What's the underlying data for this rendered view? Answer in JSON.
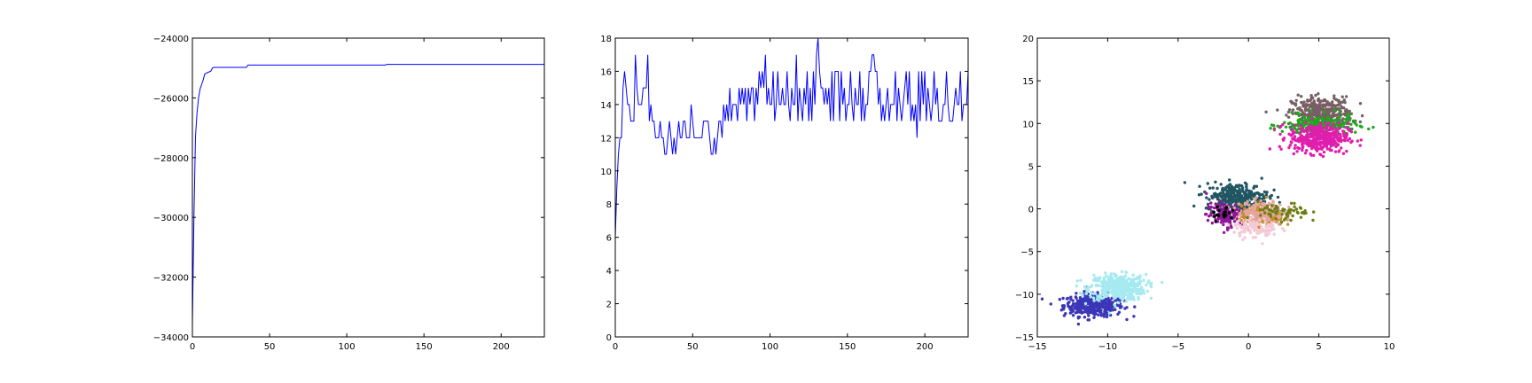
{
  "colors": {
    "line": "#0000ff",
    "axis": "#000000",
    "background": "#ffffff"
  },
  "chart_data": [
    {
      "type": "line",
      "title": "",
      "xlabel": "",
      "ylabel": "",
      "xlim": [
        0,
        228
      ],
      "ylim": [
        -34000,
        -24000
      ],
      "xticks": [
        0,
        50,
        100,
        150,
        200
      ],
      "yticks": [
        -34000,
        -32000,
        -30000,
        -28000,
        -26000,
        -24000
      ],
      "xtick_labels": [
        "0",
        "50",
        "100",
        "150",
        "200"
      ],
      "ytick_labels": [
        "−34000",
        "−32000",
        "−30000",
        "−28000",
        "−26000",
        "−24000"
      ],
      "grid": false,
      "series": [
        {
          "color": "#0000ff",
          "points": [
            [
              0,
              -33600
            ],
            [
              1,
              -30000
            ],
            [
              2,
              -27300
            ],
            [
              3,
              -26500
            ],
            [
              4,
              -26000
            ],
            [
              5,
              -25700
            ],
            [
              6,
              -25550
            ],
            [
              7,
              -25400
            ],
            [
              8,
              -25200
            ],
            [
              10,
              -25150
            ],
            [
              12,
              -25100
            ],
            [
              13,
              -25000
            ],
            [
              14,
              -24980
            ],
            [
              35,
              -24980
            ],
            [
              36,
              -24900
            ],
            [
              125,
              -24900
            ],
            [
              126,
              -24880
            ],
            [
              228,
              -24880
            ]
          ]
        }
      ]
    },
    {
      "type": "line",
      "title": "",
      "xlabel": "",
      "ylabel": "",
      "xlim": [
        0,
        228
      ],
      "ylim": [
        0,
        18
      ],
      "xticks": [
        0,
        50,
        100,
        150,
        200
      ],
      "yticks": [
        0,
        2,
        4,
        6,
        8,
        10,
        12,
        14,
        16,
        18
      ],
      "xtick_labels": [
        "0",
        "50",
        "100",
        "150",
        "200"
      ],
      "ytick_labels": [
        "0",
        "2",
        "4",
        "6",
        "8",
        "10",
        "12",
        "14",
        "16",
        "18"
      ],
      "grid": false,
      "series": [
        {
          "color": "#0000ff",
          "y": [
            6,
            9,
            11,
            12,
            12,
            15,
            16,
            15,
            14,
            14,
            13,
            13,
            13,
            17,
            15,
            14,
            14,
            14,
            15,
            15,
            15,
            17,
            13,
            14,
            13,
            13,
            12,
            12,
            12,
            13,
            12,
            12,
            11,
            11,
            12,
            13,
            12,
            11,
            12,
            11,
            12,
            13,
            12,
            12,
            13,
            13,
            12,
            12,
            12,
            14,
            13,
            12,
            12,
            12,
            12,
            12,
            12,
            13,
            13,
            13,
            13,
            12,
            11,
            11,
            12,
            11,
            12,
            13,
            13,
            12,
            14,
            13,
            14,
            13,
            15,
            13,
            14,
            14,
            14,
            13,
            15,
            14,
            15,
            14,
            15,
            13,
            15,
            14,
            15,
            15,
            13,
            15,
            14,
            16,
            15,
            16,
            15,
            17,
            14,
            15,
            14,
            14,
            16,
            13,
            14,
            16,
            14,
            14,
            15,
            14,
            14,
            16,
            14,
            13,
            15,
            14,
            14,
            17,
            13,
            15,
            14,
            13,
            15,
            14,
            16,
            13,
            15,
            13,
            16,
            14,
            17,
            18,
            16,
            15,
            15,
            14,
            15,
            14,
            15,
            13,
            16,
            13,
            16,
            16,
            16,
            13,
            16,
            14,
            15,
            13,
            14,
            14,
            16,
            14,
            13,
            15,
            14,
            14,
            16,
            13,
            15,
            13,
            14,
            14,
            16,
            16,
            17,
            17,
            16,
            16,
            14,
            15,
            13,
            14,
            13,
            14,
            15,
            13,
            14,
            14,
            14,
            16,
            13,
            15,
            14,
            13,
            14,
            15,
            16,
            14,
            16,
            13,
            14,
            13,
            14,
            12,
            16,
            13,
            16,
            14,
            16,
            13,
            15,
            14,
            13,
            14,
            16,
            14,
            15,
            13,
            13,
            13,
            14,
            14,
            16,
            14,
            13,
            13,
            13,
            14,
            15,
            14,
            14,
            16,
            13,
            14,
            14,
            14,
            16,
            13
          ]
        }
      ]
    },
    {
      "type": "scatter",
      "title": "",
      "xlabel": "",
      "ylabel": "",
      "xlim": [
        -15,
        10
      ],
      "ylim": [
        -15,
        20
      ],
      "xticks": [
        -15,
        -10,
        -5,
        0,
        5,
        10
      ],
      "yticks": [
        -15,
        -10,
        -5,
        0,
        5,
        10,
        15,
        20
      ],
      "xtick_labels": [
        "−15",
        "−10",
        "−5",
        "0",
        "5",
        "10"
      ],
      "ytick_labels": [
        "−15",
        "−10",
        "−5",
        "0",
        "5",
        "10",
        "15",
        "20"
      ],
      "grid": false,
      "clusters": [
        {
          "color": "#3b36b7",
          "center": [
            -11,
            -11.3
          ],
          "spread": [
            1.05,
            0.65
          ],
          "count": 380
        },
        {
          "color": "#a5eaf0",
          "center": [
            -9.3,
            -9.2
          ],
          "spread": [
            1.0,
            0.75
          ],
          "count": 420
        },
        {
          "color": "#775f63",
          "center": [
            5.2,
            11.2
          ],
          "spread": [
            1.05,
            0.95
          ],
          "count": 380
        },
        {
          "color": "#1da91d",
          "center": [
            5.0,
            9.8
          ],
          "spread": [
            1.3,
            0.6
          ],
          "count": 200
        },
        {
          "color": "#e01ead",
          "center": [
            5.0,
            8.3
          ],
          "spread": [
            1.05,
            0.85
          ],
          "count": 380
        },
        {
          "color": "#205562",
          "center": [
            -0.8,
            1.4
          ],
          "spread": [
            1.1,
            0.8
          ],
          "count": 300
        },
        {
          "color": "#8e1996",
          "center": [
            -1.6,
            -0.7
          ],
          "spread": [
            0.7,
            0.7
          ],
          "count": 150
        },
        {
          "color": "#c18d27",
          "center": [
            1.0,
            -0.8
          ],
          "spread": [
            0.75,
            0.6
          ],
          "count": 220
        },
        {
          "color": "#e7a59e",
          "center": [
            0.9,
            -0.4
          ],
          "spread": [
            0.8,
            0.7
          ],
          "count": 160
        },
        {
          "color": "#f5c9d6",
          "center": [
            0.5,
            -2.2
          ],
          "spread": [
            0.8,
            0.6
          ],
          "count": 100
        },
        {
          "color": "#6c7d12",
          "center": [
            2.5,
            -0.5
          ],
          "spread": [
            0.9,
            0.6
          ],
          "count": 60
        },
        {
          "color": "#000000",
          "center": [
            -1.8,
            -0.5
          ],
          "spread": [
            0.4,
            0.4
          ],
          "count": 20
        }
      ]
    }
  ]
}
